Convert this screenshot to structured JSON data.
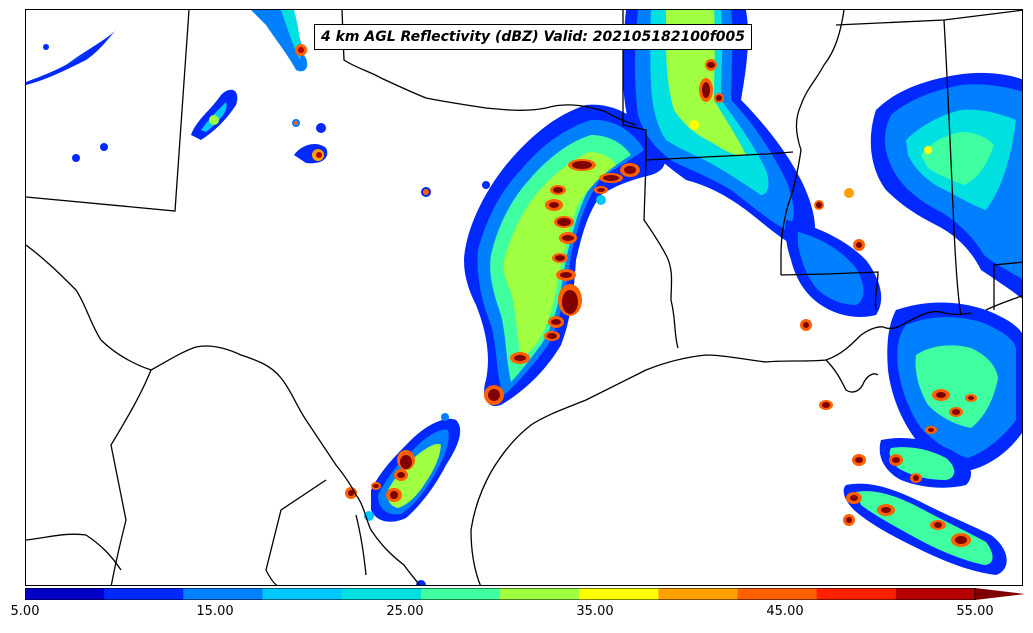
{
  "title": "4 km AGL Reflectivity (dBZ) Valid: 202105182100f005",
  "colorbar": {
    "colors": [
      "#0000c8",
      "#0028ff",
      "#0080ff",
      "#00c8ff",
      "#00e0e0",
      "#40ffa0",
      "#a0ff40",
      "#ffff00",
      "#ffa000",
      "#ff6000",
      "#ff2000",
      "#b40000",
      "#800000"
    ],
    "labels": [
      "5.00",
      "15.00",
      "25.00",
      "35.00",
      "45.00",
      "55.00"
    ],
    "extend": "max"
  },
  "palette": {
    "border": "#000000",
    "background": "#ffffff"
  }
}
